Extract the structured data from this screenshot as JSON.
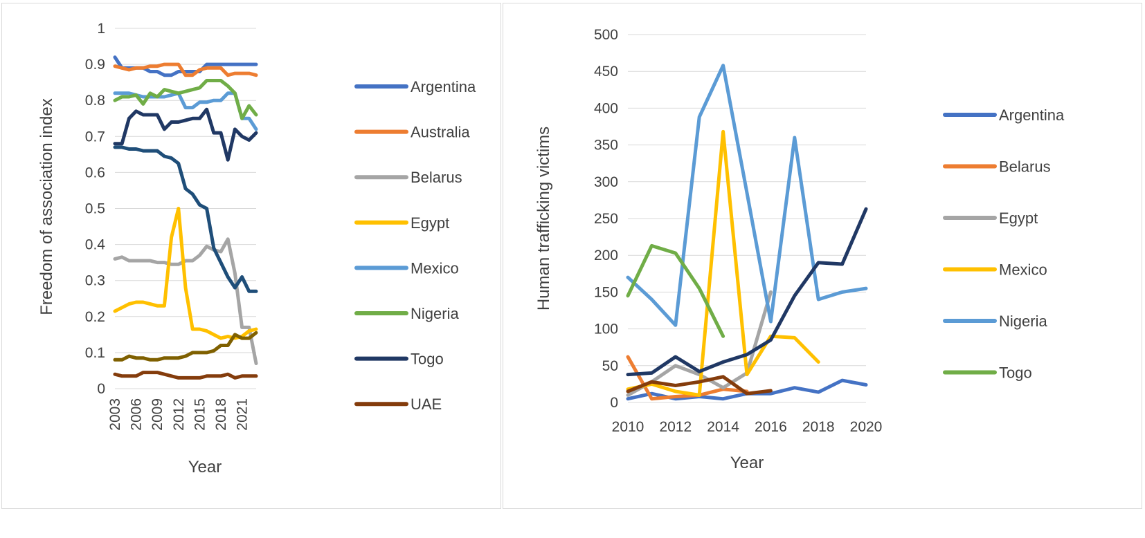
{
  "chart_data": [
    {
      "type": "line",
      "title": "",
      "xlabel": "Year",
      "ylabel": "Freedom of association index",
      "ylim": [
        0,
        1
      ],
      "yticks": [
        "0",
        "0.1",
        "0.2",
        "0.3",
        "0.4",
        "0.5",
        "0.6",
        "0.7",
        "0.8",
        "0.9",
        "1"
      ],
      "xticks": [
        "2003",
        "2006",
        "2009",
        "2012",
        "2015",
        "2018",
        "2021"
      ],
      "grid": true,
      "legend": "right",
      "x": [
        2003,
        2004,
        2005,
        2006,
        2007,
        2008,
        2009,
        2010,
        2011,
        2012,
        2013,
        2014,
        2015,
        2016,
        2017,
        2018,
        2019,
        2020,
        2021,
        2022,
        2023
      ],
      "series": [
        {
          "name": "Argentina",
          "color": "#4472c4",
          "values": [
            0.92,
            0.89,
            0.89,
            0.89,
            0.89,
            0.88,
            0.88,
            0.87,
            0.87,
            0.88,
            0.88,
            0.88,
            0.88,
            0.9,
            0.9,
            0.9,
            0.9,
            0.9,
            0.9,
            0.9,
            0.9
          ]
        },
        {
          "name": "Australia",
          "color": "#ed7d31",
          "values": [
            0.895,
            0.89,
            0.885,
            0.89,
            0.89,
            0.895,
            0.895,
            0.9,
            0.9,
            0.9,
            0.87,
            0.87,
            0.885,
            0.89,
            0.89,
            0.89,
            0.87,
            0.875,
            0.875,
            0.875,
            0.87
          ]
        },
        {
          "name": "Belarus",
          "color": "#a5a5a5",
          "values": [
            0.36,
            0.365,
            0.355,
            0.355,
            0.355,
            0.355,
            0.35,
            0.35,
            0.345,
            0.345,
            0.355,
            0.355,
            0.37,
            0.395,
            0.385,
            0.38,
            0.415,
            0.32,
            0.17,
            0.17,
            0.07
          ]
        },
        {
          "name": "Egypt",
          "color": "#ffc000",
          "values": [
            0.215,
            0.225,
            0.235,
            0.24,
            0.24,
            0.235,
            0.23,
            0.23,
            0.42,
            0.5,
            0.28,
            0.165,
            0.165,
            0.16,
            0.15,
            0.14,
            0.145,
            0.14,
            0.145,
            0.16,
            0.165
          ]
        },
        {
          "name": "Mexico",
          "color": "#5b9bd5",
          "values": [
            0.82,
            0.82,
            0.82,
            0.815,
            0.81,
            0.81,
            0.81,
            0.81,
            0.815,
            0.82,
            0.78,
            0.78,
            0.795,
            0.795,
            0.8,
            0.8,
            0.82,
            0.82,
            0.75,
            0.75,
            0.72
          ]
        },
        {
          "name": "Nigeria",
          "color": "#70ad47",
          "values": [
            0.8,
            0.81,
            0.81,
            0.815,
            0.79,
            0.82,
            0.81,
            0.83,
            0.825,
            0.82,
            0.825,
            0.83,
            0.835,
            0.855,
            0.855,
            0.855,
            0.84,
            0.82,
            0.75,
            0.785,
            0.76
          ]
        },
        {
          "name": "Togo",
          "color": "#203864",
          "values": [
            0.68,
            0.68,
            0.75,
            0.77,
            0.76,
            0.76,
            0.76,
            0.72,
            0.74,
            0.74,
            0.745,
            0.75,
            0.75,
            0.775,
            0.71,
            0.71,
            0.635,
            0.72,
            0.7,
            0.69,
            0.71
          ]
        },
        {
          "name": "UAE",
          "color": "#843c0c",
          "values": [
            0.04,
            0.035,
            0.035,
            0.035,
            0.045,
            0.045,
            0.045,
            0.04,
            0.035,
            0.03,
            0.03,
            0.03,
            0.03,
            0.035,
            0.035,
            0.035,
            0.04,
            0.03,
            0.035,
            0.035,
            0.035
          ]
        },
        {
          "name": "",
          "color": "#1f4e79",
          "values": [
            0.67,
            0.67,
            0.665,
            0.665,
            0.66,
            0.66,
            0.66,
            0.645,
            0.64,
            0.625,
            0.555,
            0.54,
            0.51,
            0.5,
            0.39,
            0.35,
            0.31,
            0.28,
            0.31,
            0.27,
            0.27
          ]
        },
        {
          "name": "",
          "color": "#7f6000",
          "values": [
            0.08,
            0.08,
            0.09,
            0.085,
            0.085,
            0.08,
            0.08,
            0.085,
            0.085,
            0.085,
            0.09,
            0.1,
            0.1,
            0.1,
            0.105,
            0.12,
            0.12,
            0.15,
            0.14,
            0.14,
            0.155
          ]
        }
      ]
    },
    {
      "type": "line",
      "title": "",
      "xlabel": "Year",
      "ylabel": "Human trafficking victims",
      "ylim": [
        0,
        500
      ],
      "yticks": [
        "0",
        "50",
        "100",
        "150",
        "200",
        "250",
        "300",
        "350",
        "400",
        "450",
        "500"
      ],
      "xticks": [
        "2010",
        "2012",
        "2014",
        "2016",
        "2018",
        "2020"
      ],
      "grid": true,
      "legend": "right",
      "x": [
        2010,
        2011,
        2012,
        2013,
        2014,
        2015,
        2016,
        2017,
        2018,
        2019,
        2020
      ],
      "series": [
        {
          "name": "Argentina",
          "color": "#4472c4",
          "values": [
            5,
            12,
            5,
            8,
            5,
            12,
            12,
            20,
            14,
            30,
            24
          ]
        },
        {
          "name": "Belarus",
          "color": "#ed7d31",
          "values": [
            62,
            5,
            8,
            10,
            18,
            15,
            null,
            null,
            null,
            null,
            null
          ]
        },
        {
          "name": "Egypt",
          "color": "#a5a5a5",
          "values": [
            10,
            28,
            50,
            38,
            20,
            40,
            150,
            null,
            null,
            null,
            null
          ]
        },
        {
          "name": "Mexico",
          "color": "#ffc000",
          "values": [
            18,
            25,
            15,
            10,
            368,
            38,
            90,
            88,
            55,
            null,
            null
          ]
        },
        {
          "name": "Nigeria",
          "color": "#5b9bd5",
          "values": [
            170,
            140,
            105,
            388,
            458,
            285,
            110,
            360,
            140,
            150,
            155
          ]
        },
        {
          "name": "Togo",
          "color": "#70ad47",
          "values": [
            145,
            213,
            203,
            155,
            90,
            null,
            null,
            null,
            null,
            null,
            null
          ]
        },
        {
          "name": "",
          "color": "#203864",
          "values": [
            38,
            40,
            62,
            42,
            55,
            65,
            85,
            145,
            190,
            188,
            263
          ]
        },
        {
          "name": "",
          "color": "#843c0c",
          "values": [
            15,
            28,
            23,
            28,
            35,
            12,
            16,
            null,
            null,
            null,
            null
          ]
        }
      ]
    }
  ]
}
